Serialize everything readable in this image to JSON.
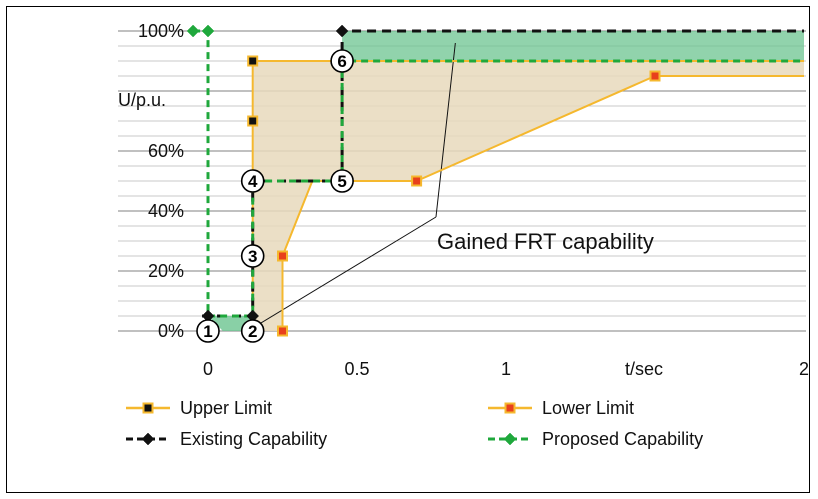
{
  "chart_data": {
    "type": "line",
    "xlabel": "t/sec",
    "ylabel": "U/p.u.",
    "xlim": [
      -0.25,
      2
    ],
    "ylim": [
      -5,
      105
    ],
    "x_ticks": [
      {
        "value": 0,
        "label": "0"
      },
      {
        "value": 0.5,
        "label": "0.5"
      },
      {
        "value": 1,
        "label": "1"
      },
      {
        "value": 2,
        "label": "2"
      }
    ],
    "y_ticks": [
      {
        "value": 0,
        "label": "0%"
      },
      {
        "value": 20,
        "label": "20%"
      },
      {
        "value": 40,
        "label": "40%"
      },
      {
        "value": 60,
        "label": "60%"
      },
      {
        "value": 100,
        "label": "100%"
      }
    ],
    "grid": true,
    "legend_position": "bottom",
    "series": [
      {
        "name": "Upper Limit",
        "color": "#f5b82e",
        "marker_fill": "#111111",
        "style": "solid",
        "x": [
          0.15,
          0.15,
          0.15,
          0.15,
          0.45,
          2
        ],
        "y": [
          0,
          70,
          90,
          90,
          90,
          90
        ]
      },
      {
        "name": "Lower Limit",
        "color": "#f5b82e",
        "marker_fill": "#e8401c",
        "style": "solid",
        "x": [
          0.25,
          0.25,
          0.25,
          0.35,
          0.7,
          1.5,
          2
        ],
        "y": [
          0,
          0,
          25,
          50,
          50,
          85,
          85
        ]
      },
      {
        "name": "Existing Capability",
        "color": "#111111",
        "marker_fill": "#111111",
        "style": "dashed",
        "x": [
          -0.02,
          0,
          0.15,
          0.15,
          0.45,
          0.45,
          2
        ],
        "y": [
          5,
          5,
          5,
          50,
          50,
          100,
          100
        ]
      },
      {
        "name": "Proposed Capability",
        "color": "#1fa83c",
        "marker_fill": "#1fa83c",
        "style": "dashed",
        "x": [
          -0.05,
          0,
          0,
          0,
          0.15,
          0.15,
          0.45,
          0.45,
          2
        ],
        "y": [
          100,
          100,
          100,
          5,
          5,
          50,
          50,
          90,
          90
        ]
      }
    ],
    "shaded_regions": [
      {
        "name": "area between limits",
        "color": "#e8d9bc"
      },
      {
        "name": "gained capability",
        "color": "#6cc490"
      }
    ],
    "point_labels": [
      {
        "label": "1",
        "x": 0,
        "y": 0
      },
      {
        "label": "2",
        "x": 0.15,
        "y": 0
      },
      {
        "label": "3",
        "x": 0.15,
        "y": 25
      },
      {
        "label": "4",
        "x": 0.15,
        "y": 50
      },
      {
        "label": "5",
        "x": 0.45,
        "y": 50
      },
      {
        "label": "6",
        "x": 0.45,
        "y": 90
      }
    ],
    "annotations": [
      {
        "text": "Gained FRT capability"
      }
    ]
  }
}
